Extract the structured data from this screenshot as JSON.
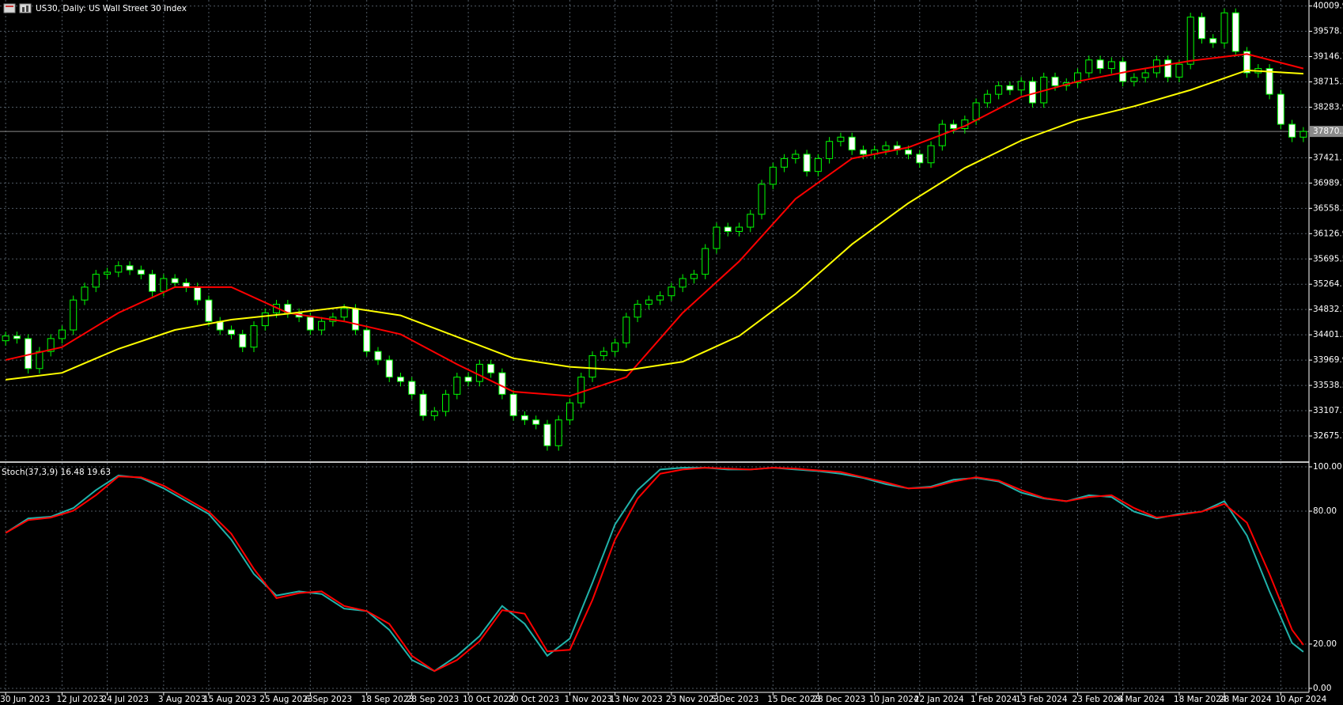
{
  "chart_data": [
    {
      "type": "candlestick",
      "title": "US30, Daily:  US Wall Street 30 Index",
      "categories": [
        "30 Jun 2023",
        null,
        null,
        null,
        null,
        "12 Jul 2023",
        null,
        null,
        null,
        "24 Jul 2023",
        null,
        null,
        null,
        null,
        "3 Aug 2023",
        null,
        null,
        null,
        "15 Aug 2023",
        null,
        null,
        null,
        null,
        "25 Aug 2023",
        null,
        null,
        null,
        "6 Sep 2023",
        null,
        null,
        null,
        null,
        "18 Sep 2023",
        null,
        null,
        null,
        "28 Sep 2023",
        null,
        null,
        null,
        null,
        "10 Oct 2023",
        null,
        null,
        null,
        "20 Oct 2023",
        null,
        null,
        null,
        null,
        "1 Nov 2023",
        null,
        null,
        null,
        "13 Nov 2023",
        null,
        null,
        null,
        null,
        "23 Nov 2023",
        null,
        null,
        null,
        "5 Dec 2023",
        null,
        null,
        null,
        null,
        "15 Dec 2023",
        null,
        null,
        null,
        "28 Dec 2023",
        null,
        null,
        null,
        null,
        "10 Jan 2024",
        null,
        null,
        null,
        "22 Jan 2024",
        null,
        null,
        null,
        null,
        "1 Feb 2024",
        null,
        null,
        null,
        "13 Feb 2024",
        null,
        null,
        null,
        null,
        "23 Feb 2024",
        null,
        null,
        null,
        "6 Mar 2024",
        null,
        null,
        null,
        null,
        "18 Mar 2024",
        null,
        null,
        null,
        "28 Mar 2024",
        null,
        null,
        null,
        null,
        "10 Apr 2024",
        null,
        null
      ],
      "open": [
        34300,
        34381,
        34337,
        33826,
        34118,
        34337,
        34484,
        34995,
        35215,
        35434,
        35470,
        35580,
        35507,
        35434,
        35142,
        35361,
        35288,
        35215,
        34995,
        34630,
        34484,
        34411,
        34191,
        34557,
        34776,
        34922,
        34776,
        34703,
        34484,
        34630,
        34703,
        34849,
        34484,
        34118,
        33972,
        33680,
        33606,
        33387,
        33022,
        33095,
        33387,
        33680,
        33606,
        33899,
        33753,
        33387,
        33022,
        32949,
        32875,
        32510,
        32949,
        33241,
        33680,
        34045,
        34118,
        34264,
        34703,
        34922,
        34995,
        35068,
        35215,
        35361,
        35434,
        35873,
        36238,
        36165,
        36238,
        36457,
        36969,
        37261,
        37408,
        37481,
        37188,
        37408,
        37700,
        37773,
        37554,
        37481,
        37554,
        37627,
        37554,
        37481,
        37335,
        37627,
        37992,
        37919,
        38066,
        38358,
        38504,
        38650,
        38577,
        38723,
        38358,
        38797,
        38650,
        38700,
        38870,
        39089,
        38943,
        39060,
        38723,
        38790,
        38870,
        39089,
        38797,
        39016,
        39820,
        39454,
        39380,
        39893,
        39235,
        38870,
        38943,
        38504,
        37992,
        37773
      ],
      "high": [
        34456,
        34456,
        34412,
        34193,
        34412,
        34559,
        35070,
        35290,
        35509,
        35545,
        35655,
        35655,
        35582,
        35509,
        35436,
        35436,
        35363,
        35290,
        35070,
        34705,
        34559,
        34486,
        34632,
        34851,
        34997,
        34997,
        34851,
        34778,
        34705,
        34778,
        34924,
        34924,
        34559,
        34193,
        34047,
        33755,
        33681,
        33462,
        33170,
        33462,
        33755,
        33755,
        33974,
        33974,
        33828,
        33462,
        33097,
        33024,
        32950,
        33024,
        33316,
        33755,
        34120,
        34193,
        34339,
        34778,
        34997,
        35070,
        35143,
        35290,
        35436,
        35509,
        35948,
        36313,
        36313,
        36313,
        36532,
        37044,
        37336,
        37483,
        37556,
        37556,
        37483,
        37775,
        37848,
        37848,
        37629,
        37629,
        37702,
        37702,
        37629,
        37556,
        37702,
        38067,
        38067,
        38141,
        38433,
        38579,
        38725,
        38725,
        38798,
        38798,
        38872,
        38872,
        38775,
        38945,
        39164,
        39164,
        39135,
        39135,
        38865,
        38945,
        39164,
        39164,
        39091,
        39895,
        39895,
        39529,
        39968,
        39968,
        39310,
        39018,
        39018,
        38579,
        38067,
        37945
      ],
      "low": [
        34215,
        34252,
        33741,
        33741,
        34033,
        34252,
        34399,
        34910,
        35130,
        35349,
        35385,
        35422,
        35349,
        35057,
        35057,
        35203,
        35130,
        34910,
        34545,
        34399,
        34326,
        34106,
        34106,
        34472,
        34691,
        34691,
        34618,
        34399,
        34399,
        34545,
        34618,
        34399,
        34033,
        33887,
        33595,
        33521,
        33302,
        32937,
        32937,
        33010,
        33302,
        33521,
        33521,
        33668,
        33302,
        32937,
        32864,
        32790,
        32425,
        32425,
        32864,
        33156,
        33595,
        33960,
        34033,
        34179,
        34618,
        34837,
        34910,
        34983,
        35130,
        35276,
        35349,
        35788,
        36080,
        36080,
        36153,
        36372,
        36884,
        37176,
        37323,
        37103,
        37103,
        37323,
        37615,
        37469,
        37396,
        37396,
        37469,
        37469,
        37396,
        37250,
        37250,
        37542,
        37834,
        37834,
        37981,
        38273,
        38419,
        38492,
        38492,
        38273,
        38273,
        38565,
        38565,
        38615,
        38785,
        38858,
        38858,
        38638,
        38638,
        38705,
        38785,
        38712,
        38712,
        38931,
        39369,
        39295,
        39295,
        39150,
        38785,
        38785,
        38419,
        37907,
        37688,
        37688
      ],
      "close": [
        34381,
        34337,
        33826,
        34118,
        34337,
        34484,
        34995,
        35215,
        35434,
        35470,
        35580,
        35507,
        35434,
        35142,
        35361,
        35288,
        35215,
        34995,
        34630,
        34484,
        34411,
        34191,
        34557,
        34776,
        34922,
        34776,
        34703,
        34484,
        34630,
        34703,
        34849,
        34484,
        34118,
        33972,
        33680,
        33606,
        33387,
        33022,
        33095,
        33387,
        33680,
        33606,
        33899,
        33753,
        33387,
        33022,
        32949,
        32875,
        32510,
        32949,
        33241,
        33680,
        34045,
        34118,
        34264,
        34703,
        34922,
        34995,
        35068,
        35215,
        35361,
        35434,
        35873,
        36238,
        36165,
        36238,
        36457,
        36969,
        37261,
        37408,
        37481,
        37188,
        37408,
        37700,
        37773,
        37554,
        37481,
        37554,
        37627,
        37554,
        37481,
        37335,
        37627,
        37992,
        37919,
        38066,
        38358,
        38504,
        38650,
        38577,
        38723,
        38358,
        38797,
        38650,
        38700,
        38870,
        39089,
        38943,
        39060,
        38723,
        38790,
        38870,
        39089,
        38797,
        39016,
        39820,
        39454,
        39380,
        39893,
        39235,
        38870,
        38943,
        38504,
        37992,
        37773,
        37870.3
      ],
      "bull_color": "#000000",
      "bear_color": "#ffffff",
      "wick_color": "#00ff00",
      "overlays": [
        {
          "color": "#ff0000",
          "x": [
            0,
            5,
            10,
            15,
            20,
            25,
            30,
            35,
            40,
            45,
            50,
            55,
            60,
            65,
            70,
            75,
            80,
            85,
            90,
            95,
            100,
            105,
            110,
            115
          ],
          "values": [
            33972,
            34191,
            34776,
            35215,
            35215,
            34776,
            34630,
            34411,
            33899,
            33431,
            33358,
            33680,
            34776,
            35653,
            36720,
            37408,
            37598,
            37963,
            38460,
            38723,
            38913,
            39074,
            39191,
            38943
          ]
        },
        {
          "color": "#ffff00",
          "x": [
            0,
            5,
            10,
            15,
            20,
            25,
            30,
            35,
            40,
            45,
            50,
            55,
            60,
            65,
            70,
            75,
            80,
            85,
            90,
            95,
            100,
            105,
            110,
            115
          ],
          "values": [
            33636,
            33753,
            34162,
            34484,
            34659,
            34761,
            34878,
            34732,
            34367,
            34001,
            33855,
            33796,
            33943,
            34381,
            35098,
            35946,
            36647,
            37247,
            37715,
            38066,
            38299,
            38577,
            38913,
            38855
          ]
        }
      ],
      "current_price": 37870.3,
      "ylim": [
        32244,
        40112
      ],
      "yticks": [
        40009.9,
        39578.1,
        39146.7,
        38715.3,
        38283.9,
        37421.1,
        36989.7,
        36558.3,
        36126.9,
        35695.5,
        35264.1,
        34832.7,
        34401.3,
        33969.9,
        33538.5,
        33107.1,
        32675.7
      ],
      "grid": true
    },
    {
      "type": "line",
      "title": "Stoch(37,3,9) 16.48 19.63",
      "xlim": [
        -0.5,
        115.5
      ],
      "ylim": [
        -1.8,
        101.8
      ],
      "yticks": [
        {
          "value": 100,
          "label": "100.00"
        },
        {
          "value": 80,
          "label": "80.00"
        },
        {
          "value": 20,
          "label": "20.00"
        },
        {
          "value": 0,
          "label": "0.00"
        }
      ],
      "grid": true,
      "series": [
        {
          "color": "#20b2aa",
          "x": [
            0,
            2,
            4,
            6,
            8,
            10,
            12,
            14,
            16,
            18,
            20,
            22,
            24,
            26,
            28,
            30,
            32,
            34,
            36,
            38,
            40,
            42,
            44,
            46,
            48,
            50,
            52,
            54,
            56,
            58,
            60,
            62,
            64,
            66,
            68,
            70,
            72,
            74,
            76,
            78,
            80,
            82,
            84,
            86,
            88,
            90,
            92,
            94,
            96,
            98,
            100,
            102,
            104,
            106,
            108,
            110,
            112,
            114,
            115
          ],
          "values": [
            70.2,
            76.7,
            77.5,
            81.4,
            89.5,
            96.1,
            95.0,
            90.3,
            84.5,
            78.7,
            67.1,
            51.6,
            41.9,
            43.8,
            42.6,
            36.0,
            34.9,
            26.4,
            12.8,
            7.8,
            14.7,
            23.6,
            37.2,
            29.1,
            14.7,
            22.5,
            47.7,
            74.0,
            89.5,
            98.8,
            99.6,
            99.6,
            98.8,
            98.8,
            99.6,
            98.8,
            98.1,
            96.9,
            95.0,
            92.2,
            90.3,
            91.1,
            94.2,
            95.0,
            93.4,
            88.4,
            85.7,
            84.5,
            87.2,
            86.4,
            79.8,
            76.7,
            78.7,
            79.8,
            84.5,
            69.0,
            43.8,
            20.5,
            16.48
          ]
        },
        {
          "color": "#ff0000",
          "x": [
            0,
            2,
            4,
            6,
            8,
            10,
            12,
            14,
            16,
            18,
            20,
            22,
            24,
            26,
            28,
            30,
            32,
            34,
            36,
            38,
            40,
            42,
            44,
            46,
            48,
            50,
            52,
            54,
            56,
            58,
            60,
            62,
            64,
            66,
            68,
            70,
            72,
            74,
            76,
            78,
            80,
            82,
            84,
            86,
            88,
            90,
            92,
            94,
            96,
            98,
            100,
            102,
            104,
            106,
            108,
            110,
            112,
            114,
            115
          ],
          "values": [
            70.2,
            76.0,
            77.1,
            80.2,
            87.2,
            95.7,
            95.3,
            91.5,
            85.7,
            79.8,
            69.8,
            53.9,
            40.7,
            43.0,
            43.8,
            37.2,
            34.9,
            29.1,
            14.7,
            7.8,
            12.8,
            21.3,
            35.3,
            33.7,
            16.7,
            17.4,
            39.9,
            67.1,
            85.7,
            96.9,
            98.8,
            99.6,
            99.2,
            98.8,
            99.6,
            99.2,
            98.4,
            97.7,
            95.3,
            93.0,
            90.3,
            90.7,
            93.4,
            95.3,
            93.8,
            89.5,
            86.0,
            84.5,
            86.4,
            87.2,
            81.4,
            77.1,
            78.3,
            79.8,
            83.3,
            74.8,
            51.6,
            26.4,
            19.63
          ]
        }
      ]
    }
  ]
}
